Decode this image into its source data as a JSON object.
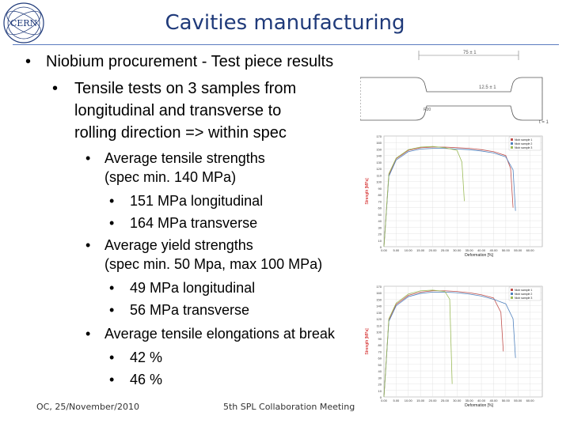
{
  "title": "Cavities manufacturing",
  "bullets": [
    {
      "level": 1,
      "text": "Niobium procurement - Test piece results"
    },
    {
      "level": 2,
      "text": "Tensile tests on 3 samples from"
    },
    {
      "level": 2,
      "cont": true,
      "text": "longitudinal and transverse to"
    },
    {
      "level": 2,
      "cont": true,
      "text": "rolling direction => within spec"
    },
    {
      "level": 3,
      "text": "Average tensile strengths"
    },
    {
      "level": 3,
      "cont": true,
      "text": "(spec min. 140 MPa)"
    },
    {
      "level": 4,
      "text": "151 MPa longitudinal"
    },
    {
      "level": 4,
      "text": "164 MPa transverse"
    },
    {
      "level": 3,
      "text": "Average yield strengths"
    },
    {
      "level": 3,
      "cont": true,
      "text": "(spec min. 50 Mpa, max 100 MPa)"
    },
    {
      "level": 4,
      "text": "49 MPa longitudinal"
    },
    {
      "level": 4,
      "text": "56 MPa transverse"
    },
    {
      "level": 3,
      "text": "Average tensile elongations at break"
    },
    {
      "level": 4,
      "text": "42 %"
    },
    {
      "level": 4,
      "text": "46 %"
    }
  ],
  "bullet_glyph": "•",
  "footer": {
    "left": "OC, 25/November/2010",
    "center": "5th SPL Collaboration Meeting"
  },
  "drawing": {
    "dim_length": "75 ± 1",
    "dim_width": "12.5 ± 1",
    "dim_small": "R20",
    "dim_thickness": "t = 1"
  },
  "colors": {
    "title": "#1f3a7a",
    "rule": "#5b7bbf"
  },
  "chart_data": [
    {
      "type": "line",
      "xlabel": "Deformation [%]",
      "ylabel": "Strength [MPa]",
      "ylim": [
        0,
        170
      ],
      "xlim": [
        0,
        65
      ],
      "yticks": [
        0,
        10,
        20,
        30,
        40,
        50,
        60,
        70,
        80,
        90,
        100,
        110,
        120,
        130,
        140,
        150,
        160,
        170
      ],
      "xticks": [
        0,
        5,
        10,
        15,
        20,
        25,
        30,
        35,
        40,
        45,
        50,
        55,
        60
      ],
      "legend_entries": [
        "Niob sample 1",
        "Niob sample 2",
        "Niob sample 3"
      ],
      "legend_position": "top-right",
      "series": [
        {
          "color": "#c0504d",
          "x": [
            0,
            2,
            5,
            10,
            15,
            20,
            25,
            30,
            35,
            40,
            45,
            50,
            52,
            53
          ],
          "y": [
            0,
            110,
            135,
            148,
            152,
            153,
            153,
            152,
            151,
            149,
            146,
            140,
            120,
            60
          ]
        },
        {
          "color": "#4f81bd",
          "x": [
            0,
            2,
            5,
            10,
            15,
            20,
            25,
            30,
            35,
            40,
            45,
            50,
            53,
            54
          ],
          "y": [
            0,
            108,
            133,
            146,
            150,
            151,
            151,
            150,
            149,
            147,
            144,
            138,
            118,
            55
          ]
        },
        {
          "color": "#9bbb59",
          "x": [
            0,
            2,
            5,
            10,
            15,
            20,
            25,
            30,
            32,
            33
          ],
          "y": [
            0,
            112,
            136,
            149,
            153,
            154,
            152,
            148,
            130,
            70
          ]
        }
      ]
    },
    {
      "type": "line",
      "xlabel": "Deformation [%]",
      "ylabel": "Strength [MPa]",
      "ylim": [
        0,
        170
      ],
      "xlim": [
        0,
        65
      ],
      "yticks": [
        0,
        10,
        20,
        30,
        40,
        50,
        60,
        70,
        80,
        90,
        100,
        110,
        120,
        130,
        140,
        150,
        160,
        170
      ],
      "xticks": [
        0,
        5,
        10,
        15,
        20,
        25,
        30,
        35,
        40,
        45,
        50,
        55,
        60
      ],
      "legend_entries": [
        "Niob sample 1",
        "Niob sample 2",
        "Niob sample 3"
      ],
      "legend_position": "top-right",
      "series": [
        {
          "color": "#c0504d",
          "x": [
            0,
            2,
            5,
            10,
            15,
            20,
            25,
            30,
            35,
            40,
            45,
            48,
            49
          ],
          "y": [
            0,
            118,
            142,
            156,
            161,
            163,
            163,
            162,
            160,
            157,
            152,
            130,
            70
          ]
        },
        {
          "color": "#4f81bd",
          "x": [
            0,
            2,
            5,
            10,
            15,
            20,
            25,
            30,
            35,
            40,
            45,
            50,
            53,
            54
          ],
          "y": [
            0,
            116,
            140,
            154,
            159,
            161,
            161,
            160,
            158,
            155,
            150,
            143,
            120,
            60
          ]
        },
        {
          "color": "#9bbb59",
          "x": [
            0,
            2,
            5,
            10,
            15,
            20,
            25,
            27,
            28
          ],
          "y": [
            0,
            120,
            144,
            158,
            163,
            164,
            162,
            150,
            20
          ]
        }
      ]
    }
  ]
}
